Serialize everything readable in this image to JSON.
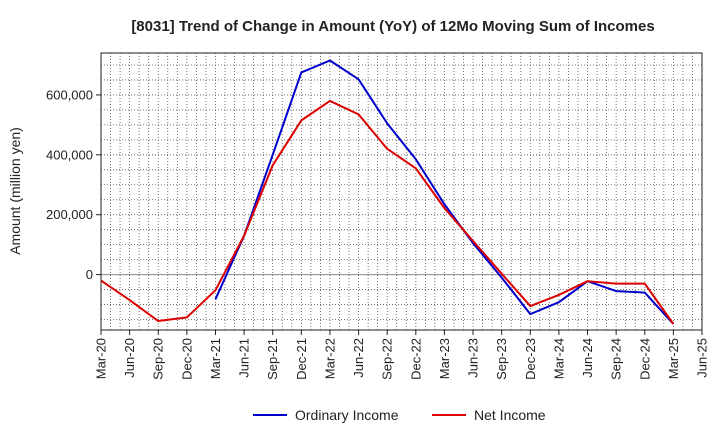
{
  "chart_data": {
    "type": "line",
    "title": "[8031]  Trend of Change in Amount (YoY) of 12Mo Moving Sum of Incomes",
    "xlabel": "",
    "ylabel": "Amount (million yen)",
    "ylim": [
      -185000,
      740000
    ],
    "yticks": [
      0,
      200000,
      400000,
      600000
    ],
    "ytick_labels": [
      "0",
      "200,000",
      "400,000",
      "600,000"
    ],
    "categories": [
      "Mar-20",
      "Jun-20",
      "Sep-20",
      "Dec-20",
      "Mar-21",
      "Jun-21",
      "Sep-21",
      "Dec-21",
      "Mar-22",
      "Jun-22",
      "Sep-22",
      "Dec-22",
      "Mar-23",
      "Jun-23",
      "Sep-23",
      "Dec-23",
      "Mar-24",
      "Jun-24",
      "Sep-24",
      "Dec-24",
      "Mar-25",
      "Jun-25"
    ],
    "grid": true,
    "legend_position": "bottom",
    "series": [
      {
        "name": "Ordinary Income",
        "color": "#0000cc",
        "values": [
          null,
          null,
          null,
          null,
          -82000,
          130000,
          400000,
          675000,
          715000,
          652000,
          505000,
          385000,
          235000,
          105000,
          -10000,
          -132000,
          -92000,
          -22000,
          -55000,
          -60000,
          -165000,
          null
        ]
      },
      {
        "name": "Net Income",
        "color": "#dd0000",
        "values": [
          -20000,
          -85000,
          -155000,
          -143000,
          -52000,
          130000,
          365000,
          515000,
          580000,
          535000,
          420000,
          355000,
          222000,
          112000,
          3000,
          -105000,
          -68000,
          -22000,
          -30000,
          -30000,
          -165000,
          null
        ]
      }
    ]
  }
}
